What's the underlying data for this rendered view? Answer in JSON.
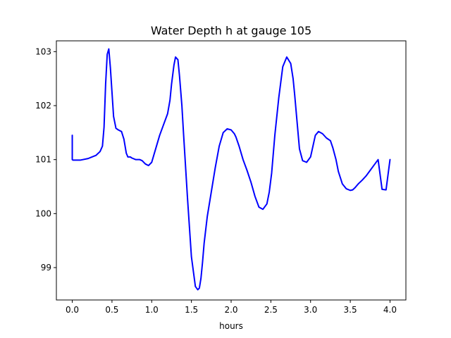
{
  "chart_data": {
    "type": "line",
    "title": "Water Depth h at gauge 105",
    "xlabel": "hours",
    "ylabel": "",
    "xlim": [
      -0.2,
      4.2
    ],
    "ylim": [
      98.4,
      103.2
    ],
    "xticks": [
      0.0,
      0.5,
      1.0,
      1.5,
      2.0,
      2.5,
      3.0,
      3.5,
      4.0
    ],
    "xtick_labels": [
      "0.0",
      "0.5",
      "1.0",
      "1.5",
      "2.0",
      "2.5",
      "3.0",
      "3.5",
      "4.0"
    ],
    "yticks": [
      99,
      100,
      101,
      102,
      103
    ],
    "ytick_labels": [
      "99",
      "100",
      "101",
      "102",
      "103"
    ],
    "grid": false,
    "series": [
      {
        "color": "#0000ff",
        "x": [
          0.0,
          0.0,
          0.01,
          0.1,
          0.2,
          0.3,
          0.35,
          0.38,
          0.4,
          0.42,
          0.44,
          0.46,
          0.48,
          0.5,
          0.52,
          0.55,
          0.58,
          0.62,
          0.65,
          0.68,
          0.7,
          0.73,
          0.75,
          0.8,
          0.85,
          0.88,
          0.92,
          0.96,
          1.0,
          1.05,
          1.1,
          1.15,
          1.2,
          1.23,
          1.25,
          1.28,
          1.3,
          1.33,
          1.35,
          1.38,
          1.4,
          1.45,
          1.5,
          1.55,
          1.58,
          1.6,
          1.62,
          1.64,
          1.66,
          1.7,
          1.75,
          1.8,
          1.85,
          1.9,
          1.95,
          2.0,
          2.04,
          2.06,
          2.1,
          2.15,
          2.2,
          2.25,
          2.3,
          2.35,
          2.4,
          2.45,
          2.48,
          2.51,
          2.55,
          2.6,
          2.65,
          2.7,
          2.75,
          2.78,
          2.8,
          2.83,
          2.86,
          2.9,
          2.95,
          3.0,
          3.03,
          3.06,
          3.1,
          3.15,
          3.2,
          3.25,
          3.28,
          3.32,
          3.35,
          3.4,
          3.45,
          3.5,
          3.53,
          3.56,
          3.6,
          3.65,
          3.7,
          3.75,
          3.8,
          3.85,
          3.9,
          3.95,
          4.0
        ],
        "y": [
          101.45,
          101.0,
          100.99,
          100.99,
          101.02,
          101.08,
          101.15,
          101.25,
          101.6,
          102.4,
          102.95,
          103.05,
          102.7,
          102.25,
          101.8,
          101.58,
          101.55,
          101.52,
          101.38,
          101.12,
          101.05,
          101.05,
          101.03,
          101.0,
          101.0,
          100.98,
          100.92,
          100.89,
          100.95,
          101.2,
          101.45,
          101.65,
          101.85,
          102.1,
          102.4,
          102.75,
          102.9,
          102.85,
          102.55,
          102.0,
          101.5,
          100.3,
          99.2,
          98.65,
          98.59,
          98.62,
          98.8,
          99.1,
          99.45,
          99.95,
          100.4,
          100.85,
          101.25,
          101.5,
          101.57,
          101.55,
          101.48,
          101.42,
          101.25,
          101.0,
          100.8,
          100.58,
          100.32,
          100.12,
          100.08,
          100.18,
          100.4,
          100.75,
          101.45,
          102.15,
          102.72,
          102.9,
          102.78,
          102.5,
          102.2,
          101.7,
          101.2,
          100.98,
          100.95,
          101.05,
          101.25,
          101.45,
          101.52,
          101.48,
          101.4,
          101.35,
          101.22,
          101.0,
          100.78,
          100.55,
          100.46,
          100.43,
          100.44,
          100.48,
          100.55,
          100.62,
          100.7,
          100.8,
          100.9,
          101.0,
          100.45,
          100.44,
          101.0
        ]
      }
    ]
  }
}
